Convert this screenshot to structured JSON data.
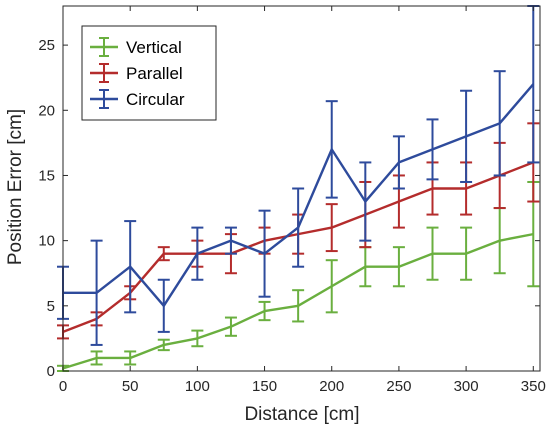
{
  "chart_data": {
    "type": "line",
    "title": "",
    "xlabel": "Distance [cm]",
    "ylabel": "Position Error [cm]",
    "xlim": [
      0,
      355
    ],
    "ylim": [
      0,
      28
    ],
    "xticks": [
      0,
      50,
      100,
      150,
      200,
      250,
      300,
      350
    ],
    "yticks": [
      0,
      5,
      10,
      15,
      20,
      25
    ],
    "grid": false,
    "legend_position": "top-left",
    "x": [
      0,
      25,
      50,
      75,
      100,
      125,
      150,
      175,
      200,
      225,
      250,
      275,
      300,
      325,
      350
    ],
    "series": [
      {
        "name": "Vertical",
        "color": "#6aaf3f",
        "values": [
          0.2,
          1,
          1,
          2,
          2.5,
          3.4,
          4.6,
          5,
          6.5,
          8,
          8,
          9,
          9,
          10,
          10.5
        ],
        "error": [
          0.2,
          0.5,
          0.5,
          0.4,
          0.6,
          0.7,
          0.7,
          1.2,
          2,
          1.5,
          1.5,
          2,
          2,
          2.5,
          4
        ]
      },
      {
        "name": "Parallel",
        "color": "#b42c2c",
        "values": [
          3,
          4,
          6,
          9,
          9,
          9,
          10,
          10.5,
          11,
          12,
          13,
          14,
          14,
          15,
          16
        ],
        "error": [
          0.5,
          0.5,
          0.5,
          0.5,
          1,
          1.5,
          1,
          1.5,
          1.8,
          2.5,
          2,
          2,
          2,
          2.5,
          3
        ]
      },
      {
        "name": "Circular",
        "color": "#2e4b9c",
        "values": [
          6,
          6,
          8,
          5,
          9,
          10,
          9,
          11,
          17,
          13,
          16,
          17,
          18,
          19,
          22
        ],
        "error": [
          2,
          4,
          3.5,
          2,
          2,
          1,
          3.3,
          3,
          3.7,
          3,
          2,
          2.3,
          3.5,
          4,
          6
        ]
      }
    ]
  }
}
